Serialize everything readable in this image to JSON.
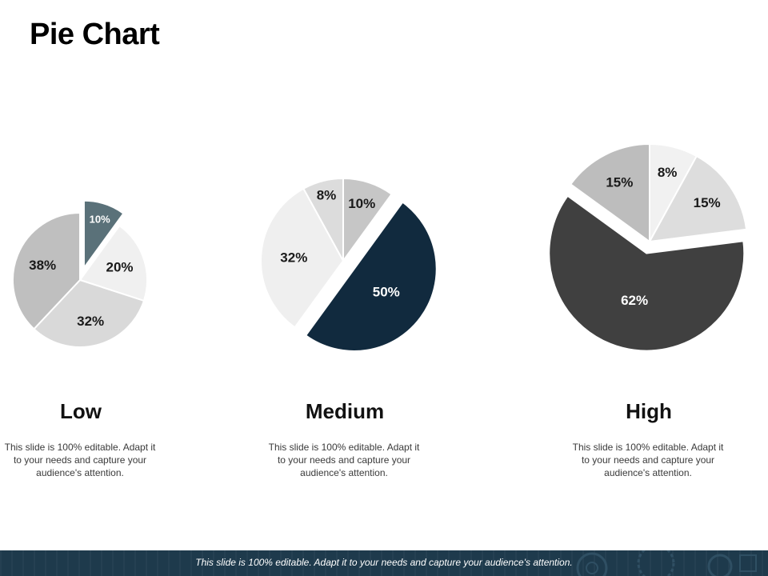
{
  "page": {
    "title": "Pie Chart"
  },
  "chart_data": [
    {
      "type": "pie",
      "title": "Low",
      "description": "This slide is 100% editable. Adapt it to your needs and capture your audience's attention.",
      "slices": [
        {
          "label": "10%",
          "value": 10,
          "color": "#5a7179",
          "exploded": true
        },
        {
          "label": "20%",
          "value": 20,
          "color": "#f0f0f0",
          "exploded": false
        },
        {
          "label": "32%",
          "value": 32,
          "color": "#d9d9d9",
          "exploded": false
        },
        {
          "label": "38%",
          "value": 38,
          "color": "#bfbfbf",
          "exploded": false
        }
      ]
    },
    {
      "type": "pie",
      "title": "Medium",
      "description": "This slide is 100% editable. Adapt it to your needs and capture your audience's attention.",
      "slices": [
        {
          "label": "10%",
          "value": 10,
          "color": "#c6c6c6",
          "exploded": false
        },
        {
          "label": "50%",
          "value": 50,
          "color": "#112a3e",
          "exploded": true
        },
        {
          "label": "32%",
          "value": 32,
          "color": "#efefef",
          "exploded": false
        },
        {
          "label": "8%",
          "value": 8,
          "color": "#dcdcdc",
          "exploded": false
        }
      ]
    },
    {
      "type": "pie",
      "title": "High",
      "description": "This slide is 100% editable. Adapt it to your needs and capture your audience's attention.",
      "slices": [
        {
          "label": "8%",
          "value": 8,
          "color": "#f1f1f1",
          "exploded": false
        },
        {
          "label": "15%",
          "value": 15,
          "color": "#dddddd",
          "exploded": false
        },
        {
          "label": "62%",
          "value": 62,
          "color": "#404040",
          "exploded": true
        },
        {
          "label": "15%",
          "value": 15,
          "color": "#bdbdbd",
          "exploded": false
        }
      ]
    }
  ],
  "footer": {
    "text": "This slide is 100% editable. Adapt it to your needs and capture your audience's attention."
  }
}
